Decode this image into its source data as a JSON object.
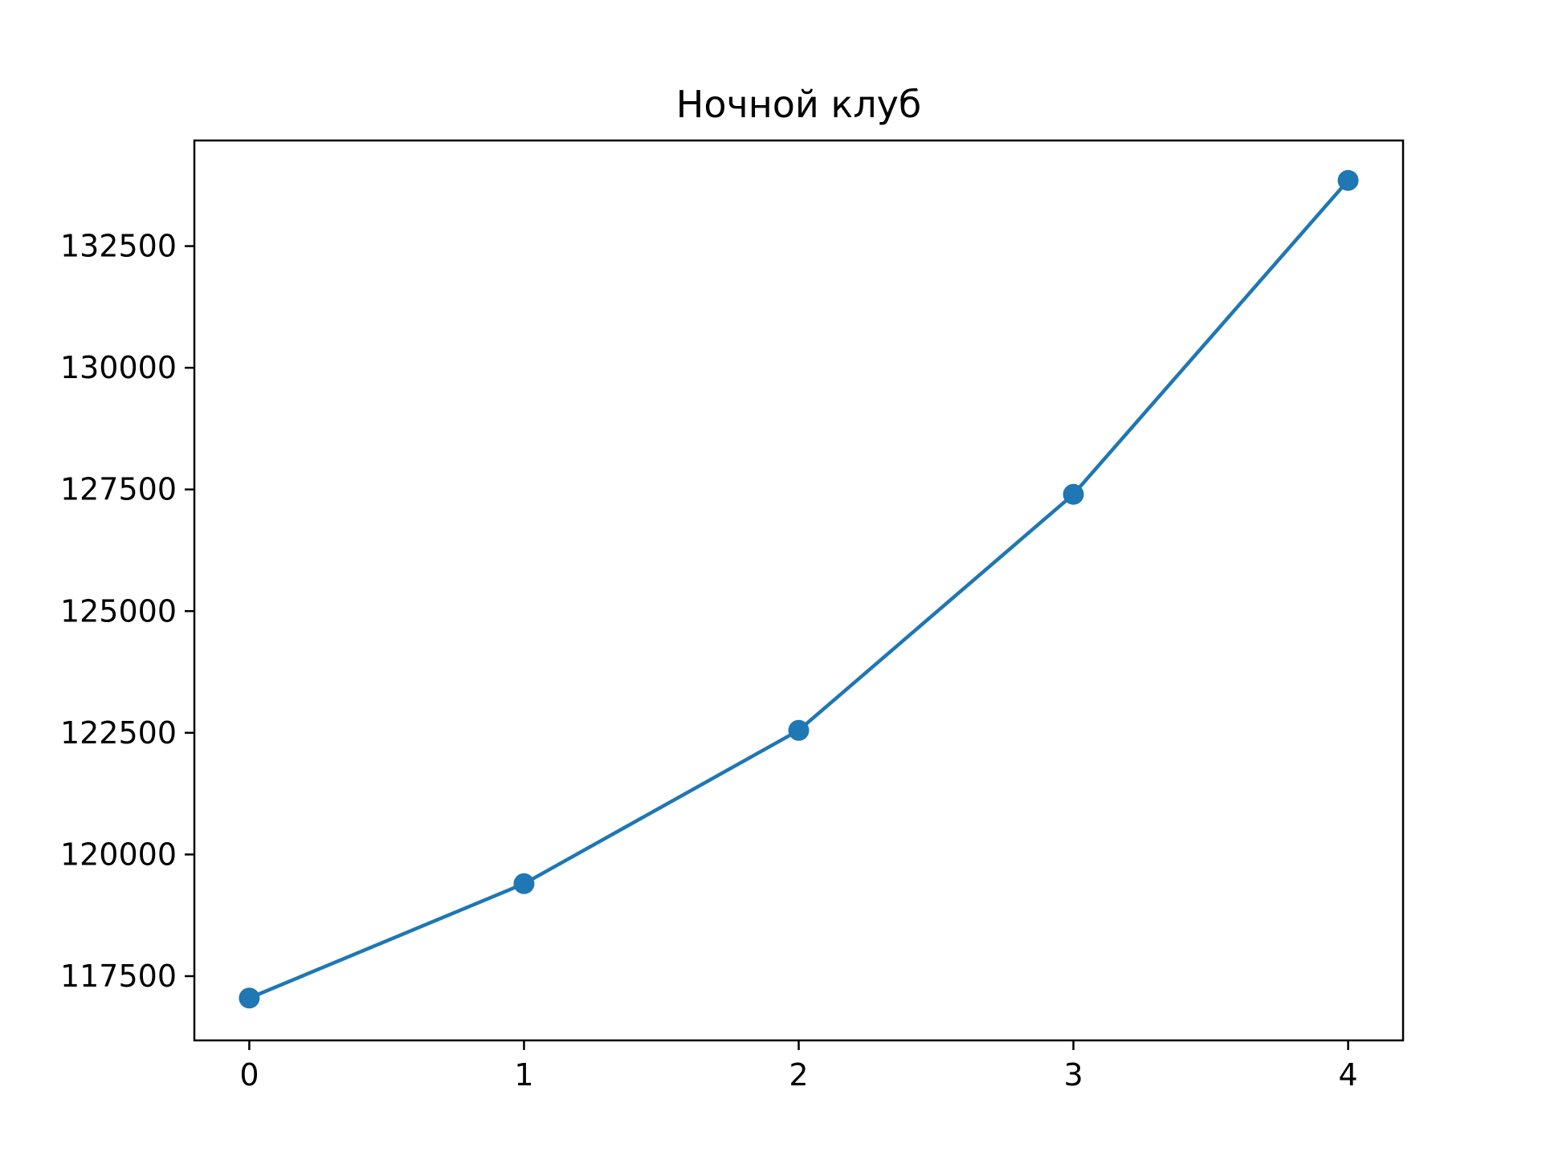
{
  "chart_data": {
    "type": "line",
    "title": "Ночной клуб",
    "xlabel": "",
    "ylabel": "",
    "x": [
      0,
      1,
      2,
      3,
      4
    ],
    "series": [
      {
        "values": [
          117050,
          119400,
          122550,
          127400,
          133850
        ],
        "color": "#1f77b4",
        "marker": "circle"
      }
    ],
    "x_ticks": [
      0,
      1,
      2,
      3,
      4
    ],
    "y_ticks": [
      117500,
      120000,
      122500,
      125000,
      127500,
      130000,
      132500
    ],
    "xlim": [
      -0.2,
      4.2
    ],
    "ylim": [
      116180,
      134670
    ],
    "grid": false,
    "legend": "none"
  }
}
